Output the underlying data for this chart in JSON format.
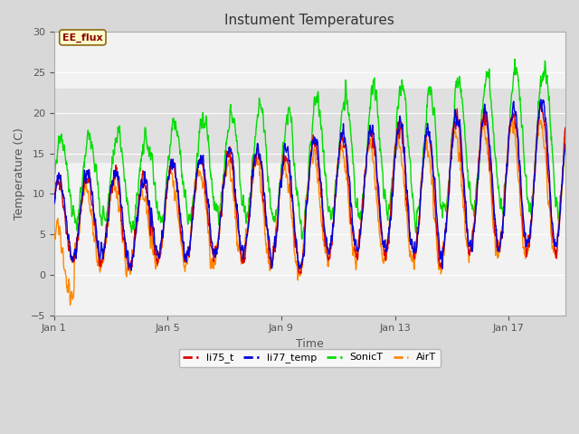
{
  "title": "Instument Temperatures",
  "xlabel": "Time",
  "ylabel": "Temperature (C)",
  "ylim": [
    -5,
    30
  ],
  "xlim_days": 18,
  "xtick_positions": [
    0,
    4,
    8,
    12,
    16
  ],
  "xtick_labels": [
    "Jan 1",
    "Jan 5",
    "Jan 9",
    "Jan 13",
    "Jan 17"
  ],
  "shaded_band": [
    14,
    23
  ],
  "shaded_color": "#e0e0e0",
  "annotation_text": "EE_flux",
  "colors": {
    "li75_t": "#dd0000",
    "li77_temp": "#0000dd",
    "SonicT": "#00dd00",
    "AirT": "#ff8800"
  },
  "background_color": "#d8d8d8",
  "plot_bg_color": "#f2f2f2",
  "n_points": 1800,
  "days": 18,
  "figsize": [
    6.4,
    4.8
  ],
  "dpi": 100
}
